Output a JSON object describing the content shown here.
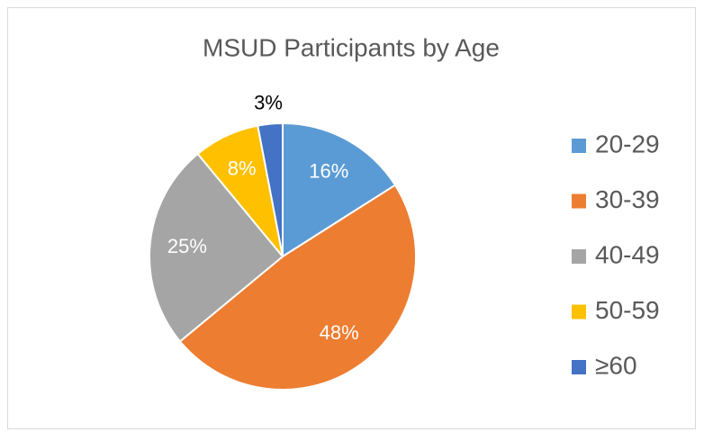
{
  "chart_data": {
    "type": "pie",
    "title": "MSUD Participants by Age",
    "categories": [
      "20-29",
      "30-39",
      "40-49",
      "50-59",
      "≥60"
    ],
    "values": [
      16,
      48,
      25,
      8,
      3
    ],
    "value_labels": [
      "16%",
      "48%",
      "25%",
      "8%",
      "3%"
    ],
    "colors": [
      "#5b9bd5",
      "#ed7d31",
      "#a5a5a5",
      "#ffc000",
      "#4472c4"
    ],
    "legend": "right"
  }
}
